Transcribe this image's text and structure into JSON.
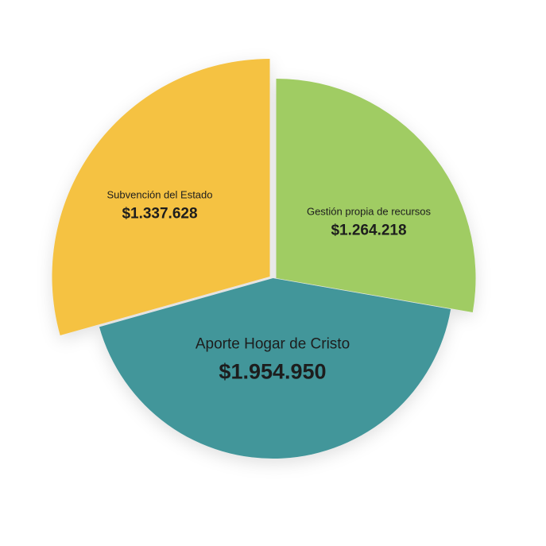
{
  "chart_data": {
    "type": "pie",
    "title": "",
    "slices": [
      {
        "label": "Gestión propia de recursos",
        "value_label": "$1.264.218",
        "value": 1264218,
        "color": "#a0cc63"
      },
      {
        "label": "Aporte Hogar de Cristo",
        "value_label": "$1.954.950",
        "value": 1954950,
        "color": "#43969a"
      },
      {
        "label": "Subvención del Estado",
        "value_label": "$1.337.628",
        "value": 1337628,
        "color": "#f5c242"
      }
    ],
    "legend": "none",
    "style": "exploded pie with different slice radii"
  }
}
